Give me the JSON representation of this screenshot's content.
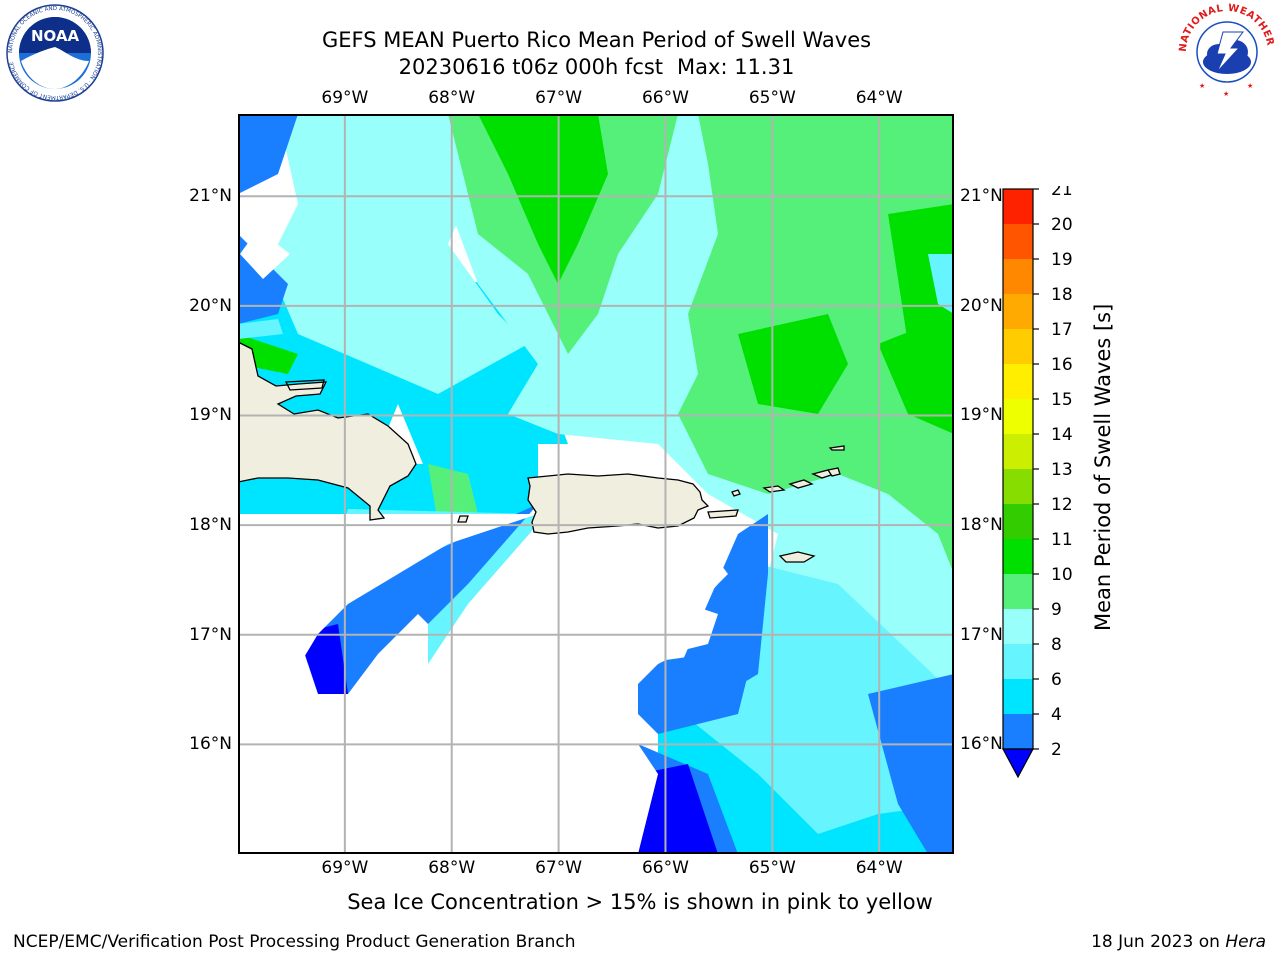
{
  "title": {
    "line1": "GEFS MEAN Puerto Rico Mean Period of Swell Waves",
    "line2_date": "20230616 t06z 000h fcst",
    "line2_max": "Max: 11.31"
  },
  "logos": {
    "left": {
      "icon": "noaa-logo",
      "text": "NOAA",
      "ring_text": "NATIONAL OCEANIC AND ATMOSPHERIC ADMINISTRATION · U.S. DEPARTMENT OF COMMERCE"
    },
    "right": {
      "icon": "nws-logo",
      "ring_text": "NATIONAL WEATHER SERVICE"
    }
  },
  "map": {
    "lon_ticks": [
      "69°W",
      "68°W",
      "67°W",
      "66°W",
      "65°W",
      "64°W"
    ],
    "lat_ticks": [
      "21°N",
      "20°N",
      "19°N",
      "18°N",
      "17°N",
      "16°N"
    ],
    "lon_values": [
      -69,
      -68,
      -67,
      -66,
      -65,
      -64
    ],
    "lat_values": [
      21,
      20,
      19,
      18,
      17,
      16
    ],
    "extent": {
      "lon_min": -70.0,
      "lon_max": -63.3,
      "lat_min": 15.0,
      "lat_max": 21.75
    },
    "land_color": "#efeedf",
    "grid_color": "#b3b3b3"
  },
  "colorbar": {
    "title": "Mean Period of Swell Waves [s]",
    "levels": [
      "2",
      "4",
      "6",
      "8",
      "9",
      "10",
      "11",
      "12",
      "13",
      "14",
      "15",
      "16",
      "17",
      "18",
      "19",
      "20",
      "21"
    ],
    "colors": [
      "#0000ff",
      "#1a7fff",
      "#00e5ff",
      "#66f5ff",
      "#99fffb",
      "#55f07a",
      "#00e000",
      "#33cc00",
      "#88dd00",
      "#ccee00",
      "#eeff00",
      "#ffee00",
      "#ffcc00",
      "#ffaa00",
      "#ff8800",
      "#ff5500",
      "#ff2200",
      "#ff0000"
    ],
    "under_color": "#0000ff",
    "extend": "min"
  },
  "note": "Sea Ice Concentration > 15% is shown in pink to yellow",
  "footer": {
    "left": "NCEP/EMC/Verification Post Processing Product Generation Branch",
    "right_date": "18 Jun 2023 on ",
    "right_host": "Hera"
  }
}
